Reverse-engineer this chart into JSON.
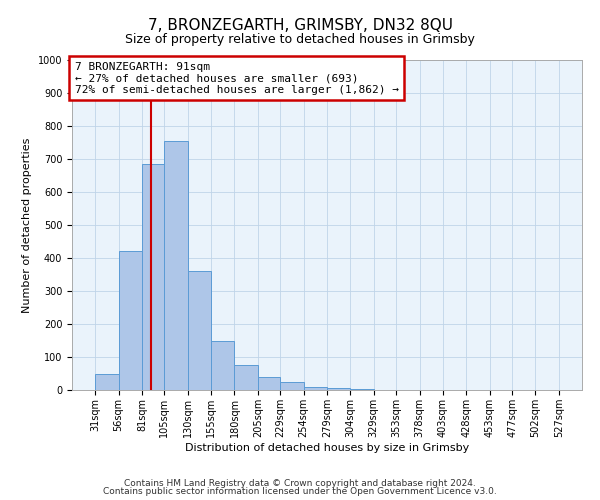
{
  "title": "7, BRONZEGARTH, GRIMSBY, DN32 8QU",
  "subtitle": "Size of property relative to detached houses in Grimsby",
  "xlabel": "Distribution of detached houses by size in Grimsby",
  "ylabel": "Number of detached properties",
  "bin_edges": [
    31,
    56,
    81,
    105,
    130,
    155,
    180,
    205,
    229,
    254,
    279,
    304,
    329,
    353,
    378,
    403,
    428,
    453,
    477,
    502,
    527
  ],
  "bar_heights": [
    50,
    420,
    685,
    755,
    360,
    150,
    75,
    38,
    25,
    10,
    5,
    2,
    1,
    0,
    0,
    0,
    0,
    0,
    0,
    0
  ],
  "bar_color": "#aec6e8",
  "bar_edge_color": "#5b9bd5",
  "property_size": 91,
  "red_line_color": "#cc0000",
  "annotation_text": "7 BRONZEGARTH: 91sqm\n← 27% of detached houses are smaller (693)\n72% of semi-detached houses are larger (1,862) →",
  "annotation_box_color": "#ffffff",
  "annotation_box_edge_color": "#cc0000",
  "ylim": [
    0,
    1000
  ],
  "yticks": [
    0,
    100,
    200,
    300,
    400,
    500,
    600,
    700,
    800,
    900,
    1000
  ],
  "grid_color": "#c0d4e8",
  "background_color": "#eaf3fb",
  "footer_line1": "Contains HM Land Registry data © Crown copyright and database right 2024.",
  "footer_line2": "Contains public sector information licensed under the Open Government Licence v3.0.",
  "title_fontsize": 11,
  "subtitle_fontsize": 9,
  "annotation_fontsize": 8,
  "tick_label_fontsize": 7,
  "ylabel_fontsize": 8,
  "xlabel_fontsize": 8,
  "footer_fontsize": 6.5
}
